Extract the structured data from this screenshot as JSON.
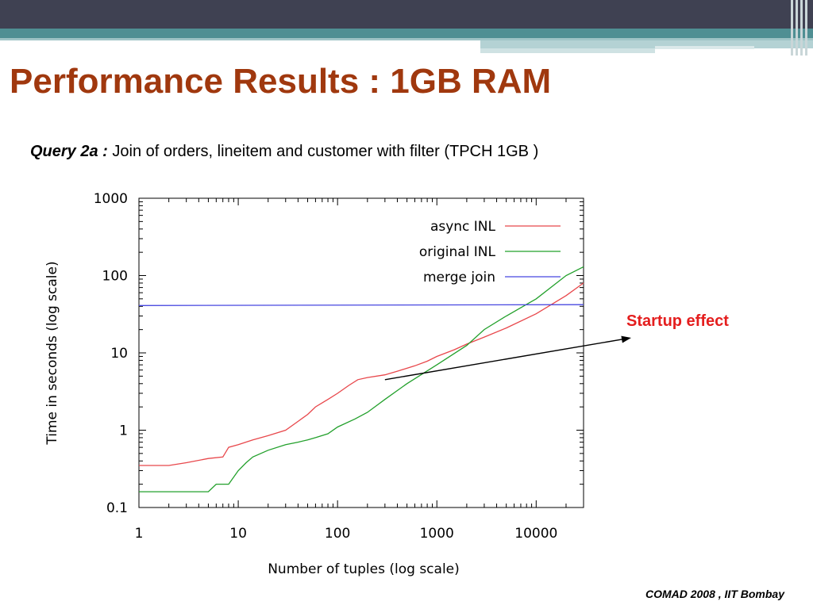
{
  "slide": {
    "title": "Performance Results : 1GB RAM",
    "query_label": "Query 2a :",
    "query_text": " Join of orders, lineitem and customer with filter  (TPCH 1GB )",
    "annotation": "Startup effect",
    "footer": "COMAD 2008 , IIT Bombay"
  },
  "colors": {
    "title": "#a0380e",
    "topbar": "#3f4152",
    "teal": "#4f8f93",
    "annotation": "#e41e1e"
  },
  "chart_data": {
    "type": "line",
    "title": "",
    "xlabel": "Number of tuples (log scale)",
    "ylabel": "Time in seconds (log scale)",
    "x_scale": "log",
    "y_scale": "log",
    "xlim": [
      1,
      30000
    ],
    "ylim": [
      0.1,
      1000
    ],
    "xticks": [
      1,
      10,
      100,
      1000,
      10000
    ],
    "xtick_labels": [
      "1",
      "10",
      "100",
      "1000",
      "10000"
    ],
    "yticks": [
      0.1,
      1,
      10,
      100,
      1000
    ],
    "ytick_labels": [
      "0.1",
      "1",
      "10",
      "100",
      "1000"
    ],
    "grid": false,
    "legend_position": "top-right",
    "series": [
      {
        "name": "async INL",
        "color": "#e8474b",
        "x": [
          1,
          2,
          3,
          5,
          7,
          8,
          10,
          14,
          20,
          30,
          40,
          50,
          60,
          80,
          100,
          130,
          160,
          200,
          300,
          400,
          600,
          800,
          1000,
          1500,
          2000,
          3000,
          5000,
          10000,
          20000,
          30000
        ],
        "y": [
          0.35,
          0.35,
          0.38,
          0.43,
          0.45,
          0.6,
          0.65,
          0.75,
          0.85,
          1.0,
          1.3,
          1.6,
          2.0,
          2.5,
          3.0,
          3.8,
          4.5,
          4.8,
          5.2,
          5.8,
          6.8,
          7.8,
          9.0,
          11.0,
          13.0,
          16.0,
          21.0,
          32.0,
          55.0,
          80.0
        ]
      },
      {
        "name": "original INL",
        "color": "#22a02b",
        "x": [
          1,
          2,
          3,
          5,
          6,
          8,
          10,
          12,
          14,
          20,
          30,
          40,
          50,
          60,
          80,
          100,
          150,
          200,
          300,
          500,
          1000,
          2000,
          3000,
          5000,
          10000,
          20000,
          30000
        ],
        "y": [
          0.16,
          0.16,
          0.16,
          0.16,
          0.2,
          0.2,
          0.3,
          0.38,
          0.45,
          0.55,
          0.65,
          0.7,
          0.75,
          0.8,
          0.9,
          1.1,
          1.4,
          1.7,
          2.5,
          4.0,
          7.0,
          12.5,
          20.0,
          30.0,
          50.0,
          100.0,
          130.0
        ]
      },
      {
        "name": "merge join",
        "color": "#4747e0",
        "x": [
          1,
          30000
        ],
        "y": [
          41,
          42
        ]
      }
    ],
    "annotations": [
      {
        "text": "Startup effect",
        "arrow_from": [
          300,
          4.5
        ],
        "arrow_to": [
          20000,
          15
        ]
      }
    ]
  }
}
